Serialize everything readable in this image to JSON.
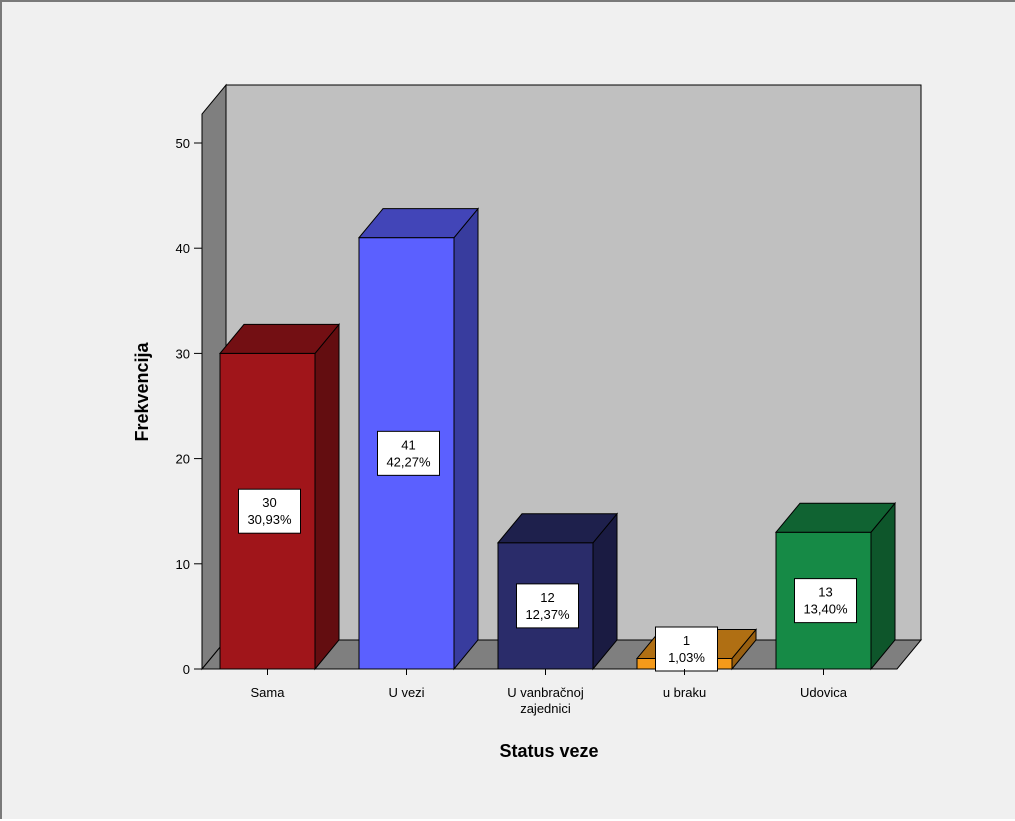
{
  "chart_data": {
    "type": "bar",
    "style": "3d",
    "xlabel": "Status veze",
    "ylabel": "Frekvencija",
    "ylim": [
      0,
      50
    ],
    "yticks": [
      0,
      10,
      20,
      30,
      40,
      50
    ],
    "categories": [
      [
        "Sama"
      ],
      [
        "U vezi"
      ],
      [
        "U vanbračnoj",
        "zajednici"
      ],
      [
        "u braku"
      ],
      [
        "Udovica"
      ]
    ],
    "values": [
      30,
      41,
      12,
      1,
      13
    ],
    "percent_labels": [
      "30,93%",
      "42,27%",
      "12,37%",
      "1,03%",
      "13,40%"
    ],
    "colors": [
      "#a0151a",
      "#5b60ff",
      "#2a2c6a",
      "#f59a1a",
      "#168a46"
    ],
    "grid": false,
    "legend": "none",
    "backwall_color": "#c0c0c0",
    "floor_color": "#7f7f7f"
  }
}
